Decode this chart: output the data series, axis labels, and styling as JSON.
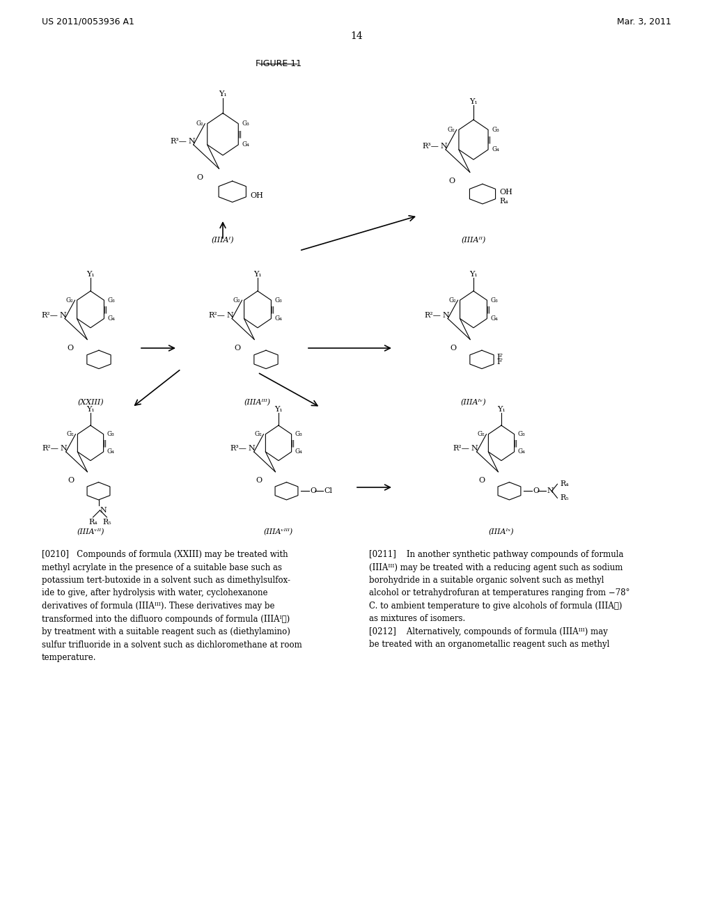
{
  "bg_color": "#ffffff",
  "page_number": "14",
  "left_header": "US 2011/0053936 A1",
  "right_header": "Mar. 3, 2011",
  "figure_title": "FIGURE 11",
  "body_text_left": "[0210]   Compounds of formula (XXIII) may be treated with\nmethyl acrylate in the presence of a suitable base such as\npotassium tert-butoxide in a solvent such as dimethylsulfox-\nide to give, after hydrolysis with water, cyclohexanone\nderivatives of formula (IIIAᴵᴵᴵ). These derivatives may be\ntransformed into the difluoro compounds of formula (IIIAᴵᵬ)\nby treatment with a suitable reagent such as (diethylamino)\nsulfur trifluoride in a solvent such as dichloromethane at room\ntemperature.",
  "body_text_right": "[0211]    In another synthetic pathway compounds of formula\n(IIIAᴵᴵᴵ) may be treated with a reducing agent such as sodium\nborohydride in a suitable organic solvent such as methyl\nalcohol or tetrahydrofuran at temperatures ranging from −78°\nC. to ambient temperature to give alcohols of formula (IIIAᵬ)\nas mixtures of isomers.\n[0212]    Alternatively, compounds of formula (IIIAᴵᴵᴵ) may\nbe treated with an organometallic reagent such as methyl"
}
